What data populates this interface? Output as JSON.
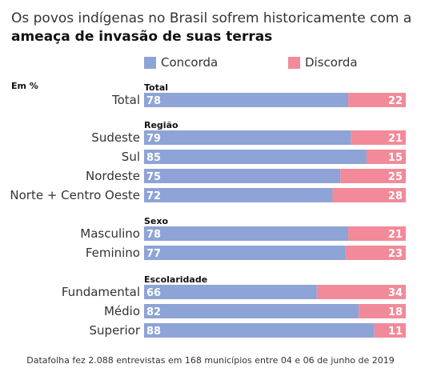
{
  "title": {
    "line1": "Os povos indígenas no Brasil sofrem historicamente com a",
    "line2": "ameaça de invasão de suas terras"
  },
  "legend": [
    {
      "label": "Concorda",
      "color": "#8ea3d6"
    },
    {
      "label": "Discorda",
      "color": "#f28a9a"
    }
  ],
  "unit_label": "Em %",
  "footnote": "Datafolha fez 2.088 entrevistas em 168 municípios entre 04 e 06 de junho de 2019",
  "chart_data": {
    "type": "bar",
    "stacked": true,
    "orientation": "horizontal",
    "series_names": [
      "Concorda",
      "Discorda"
    ],
    "colors": {
      "concorda": "#8ea3d6",
      "discorda": "#f28a9a"
    },
    "groups": [
      {
        "name": "Total",
        "rows": [
          {
            "label": "Total",
            "concorda": 78,
            "discorda": 22
          }
        ]
      },
      {
        "name": "Região",
        "rows": [
          {
            "label": "Sudeste",
            "concorda": 79,
            "discorda": 21
          },
          {
            "label": "Sul",
            "concorda": 85,
            "discorda": 15
          },
          {
            "label": "Nordeste",
            "concorda": 75,
            "discorda": 25
          },
          {
            "label": "Norte + Centro Oeste",
            "concorda": 72,
            "discorda": 28
          }
        ]
      },
      {
        "name": "Sexo",
        "rows": [
          {
            "label": "Masculino",
            "concorda": 78,
            "discorda": 21
          },
          {
            "label": "Feminino",
            "concorda": 77,
            "discorda": 23
          }
        ]
      },
      {
        "name": "Escolaridade",
        "rows": [
          {
            "label": "Fundamental",
            "concorda": 66,
            "discorda": 34
          },
          {
            "label": "Médio",
            "concorda": 82,
            "discorda": 18
          },
          {
            "label": "Superior",
            "concorda": 88,
            "discorda": 11
          }
        ]
      }
    ]
  }
}
